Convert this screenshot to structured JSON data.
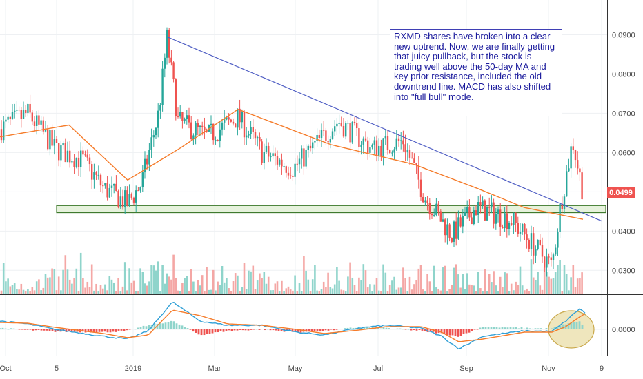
{
  "annotation": {
    "text": "RXMD shares have broken into a clear new uptrend. Now, we are finally getting that juicy pullback, but the stock is trading well above the 50-day MA and key prior resistance, included the old downtrend line. MACD has also shifted into \"full bull\" mode."
  },
  "last_price_label": "0.0499",
  "colors": {
    "up": "#26a69a",
    "down": "#ef5350",
    "up_volume": "#8fd4cb",
    "down_volume": "#f4a7a5",
    "ma": "#f57c2b",
    "trendline": "#4f5ec4",
    "support_zone_fill": "#e6f2dc",
    "support_zone_border": "#3f7a2e",
    "macd_line": "#2f9fd6",
    "signal_line": "#f57c2b",
    "highlight_ellipse_fill": "#efe6bd",
    "highlight_ellipse_border": "#c9a84a"
  },
  "chart_data": [
    {
      "type": "candlestick",
      "title": "",
      "x_ticks": [
        "Oct",
        "5",
        "2019",
        "Mar",
        "May",
        "Jul",
        "Sep",
        "Nov",
        "9"
      ],
      "y_ticks": [
        "0.0900",
        "0.0800",
        "0.0700",
        "0.0600",
        "0.0400",
        "0.0300"
      ],
      "ylim": [
        0.0245,
        0.0935
      ],
      "last_price": 0.0499,
      "key_points": [
        {
          "time": "Oct",
          "price": 0.066
        },
        {
          "time": "early Dec",
          "price": 0.058
        },
        {
          "time": "mid Dec",
          "price": 0.051
        },
        {
          "time": "early Jan",
          "price": 0.047
        },
        {
          "time": "Jan",
          "price": 0.049
        },
        {
          "time": "late Jan",
          "price": 0.07
        },
        {
          "time": "early Feb",
          "price": 0.091
        },
        {
          "time": "Feb",
          "price": 0.068
        },
        {
          "time": "Mar",
          "price": 0.064
        },
        {
          "time": "Apr",
          "price": 0.069
        },
        {
          "time": "late Apr",
          "price": 0.058
        },
        {
          "time": "May",
          "price": 0.056
        },
        {
          "time": "mid Jun",
          "price": 0.068
        },
        {
          "time": "Jul",
          "price": 0.06
        },
        {
          "time": "late Jul",
          "price": 0.063
        },
        {
          "time": "early Aug",
          "price": 0.048
        },
        {
          "time": "late Aug",
          "price": 0.039
        },
        {
          "time": "Sep",
          "price": 0.046
        },
        {
          "time": "Oct",
          "price": 0.042
        },
        {
          "time": "late Oct",
          "price": 0.031
        },
        {
          "time": "Nov",
          "price": 0.046
        },
        {
          "time": "mid Nov",
          "price": 0.064
        },
        {
          "time": "late Nov",
          "price": 0.0499
        }
      ],
      "moving_average": {
        "key_points": [
          {
            "time": "Oct",
            "price": 0.064
          },
          {
            "time": "Nov",
            "price": 0.067
          },
          {
            "time": "early Jan",
            "price": 0.053
          },
          {
            "time": "Feb",
            "price": 0.061
          },
          {
            "time": "Apr",
            "price": 0.071
          },
          {
            "time": "Jun",
            "price": 0.062
          },
          {
            "time": "Aug",
            "price": 0.057
          },
          {
            "time": "Sep",
            "price": 0.051
          },
          {
            "time": "Oct",
            "price": 0.046
          },
          {
            "time": "Nov",
            "price": 0.043
          }
        ]
      },
      "trendline": {
        "from": {
          "time": "early Feb",
          "price": 0.0895
        },
        "to": {
          "time": "late Nov",
          "price": 0.0425
        }
      },
      "support_zone": {
        "from": 0.0447,
        "to": 0.0465
      },
      "volume": "bars at bottom of price pane, scaled relative"
    },
    {
      "type": "macd",
      "y_ticks": [
        "0.0000"
      ],
      "zero_level": 0.0,
      "highlight": "ellipse around latest bullish crossover"
    }
  ]
}
